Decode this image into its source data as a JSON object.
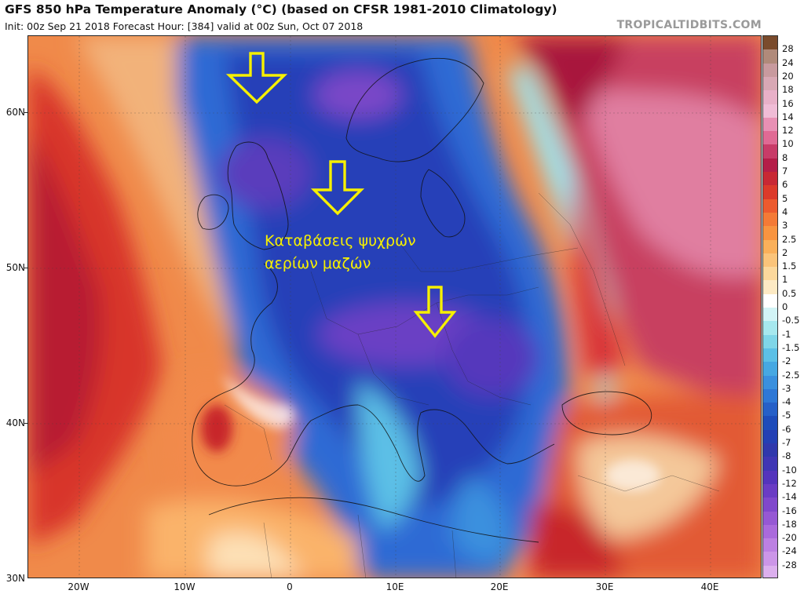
{
  "header": {
    "title": "GFS 850 hPa Temperature Anomaly (°C) (based on CFSR 1981-2010 Climatology)",
    "subtitle": "Init: 00z Sep 21 2018   Forecast Hour: [384]   valid at 00z Sun, Oct 07 2018",
    "brand": "TROPICALTIDBITS.COM"
  },
  "axes": {
    "lat_labels": [
      "60N",
      "50N",
      "40N",
      "30N"
    ],
    "lon_labels": [
      "20W",
      "10W",
      "0",
      "10E",
      "20E",
      "30E",
      "40E"
    ]
  },
  "annotation": {
    "line1": "Καταβάσεις ψυχρών",
    "line2": "αερίων μαζών",
    "color": "#f6f000"
  },
  "colorbar": {
    "labels": [
      "28",
      "24",
      "20",
      "18",
      "16",
      "14",
      "12",
      "10",
      "8",
      "7",
      "6",
      "5",
      "4",
      "3",
      "2.5",
      "2",
      "1.5",
      "1",
      "0.5",
      "0",
      "-0.5",
      "-1",
      "-1.5",
      "-2",
      "-2.5",
      "-3",
      "-4",
      "-5",
      "-6",
      "-7",
      "-8",
      "-10",
      "-12",
      "-14",
      "-16",
      "-18",
      "-20",
      "-24",
      "-28"
    ],
    "colors": [
      "#7a4b2c",
      "#b08a7a",
      "#c89a9e",
      "#d8a8b4",
      "#e8b0c8",
      "#f0bcd6",
      "#e890b4",
      "#e06a94",
      "#c83c68",
      "#b41e48",
      "#c82834",
      "#dc3a2a",
      "#ec5a2e",
      "#f47a36",
      "#f89440",
      "#fab05a",
      "#fbc47a",
      "#fcd89c",
      "#fdeac4",
      "#ffffff",
      "#d2f4f6",
      "#a6e8ee",
      "#7fd6e8",
      "#5cc0e6",
      "#46a8e2",
      "#3a90de",
      "#2e78d6",
      "#2660c8",
      "#1e4cba",
      "#2440b4",
      "#3038ac",
      "#4036b4",
      "#5434bc",
      "#6a3cc4",
      "#8048cc",
      "#9658d4",
      "#aa6adc",
      "#bc80e2",
      "#cc96e8",
      "#dcb0ee"
    ]
  },
  "arrows": [
    {
      "name": "arrow-north-sea-north"
    },
    {
      "name": "arrow-north-sea-south"
    },
    {
      "name": "arrow-adriatic"
    }
  ]
}
